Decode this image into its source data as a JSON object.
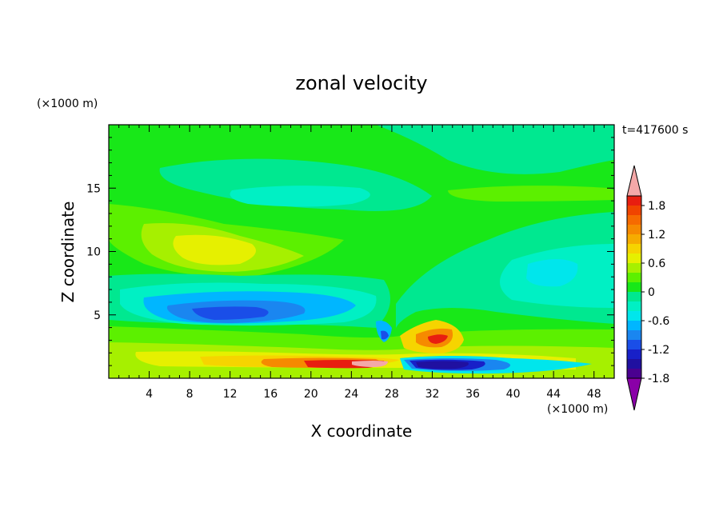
{
  "chart_data": {
    "type": "heatmap",
    "title": "zonal velocity",
    "xlabel": "X coordinate",
    "ylabel": "Z coordinate",
    "x_unit": "(×1000 m)",
    "y_unit": "(×1000 m)",
    "time_label": "t=417600 s",
    "xlim": [
      0,
      50
    ],
    "ylim": [
      0,
      20
    ],
    "x_ticks": [
      4,
      8,
      12,
      16,
      20,
      24,
      28,
      32,
      36,
      40,
      44,
      48
    ],
    "y_ticks": [
      5,
      10,
      15
    ],
    "colorbar": {
      "levels": [
        -2.0,
        -1.8,
        -1.6,
        -1.4,
        -1.2,
        -1.0,
        -0.8,
        -0.6,
        -0.4,
        -0.2,
        0.0,
        0.2,
        0.4,
        0.6,
        0.8,
        1.0,
        1.2,
        1.4,
        1.6,
        1.8,
        2.0
      ],
      "colors": [
        "#8a00a8",
        "#4a0090",
        "#2010a0",
        "#1820c8",
        "#1a4ee8",
        "#1a86f0",
        "#00b6ff",
        "#00e6ec",
        "#00f0c4",
        "#00e890",
        "#18e818",
        "#5cf000",
        "#a6f000",
        "#e6f000",
        "#f6d400",
        "#f6ac00",
        "#f68a00",
        "#f66a00",
        "#f04400",
        "#e81e10",
        "#f4a8a8"
      ],
      "tick_labels": [
        "1.8",
        "1.2",
        "0.6",
        "0",
        "-0.6",
        "-1.2",
        "-1.8"
      ]
    }
  }
}
